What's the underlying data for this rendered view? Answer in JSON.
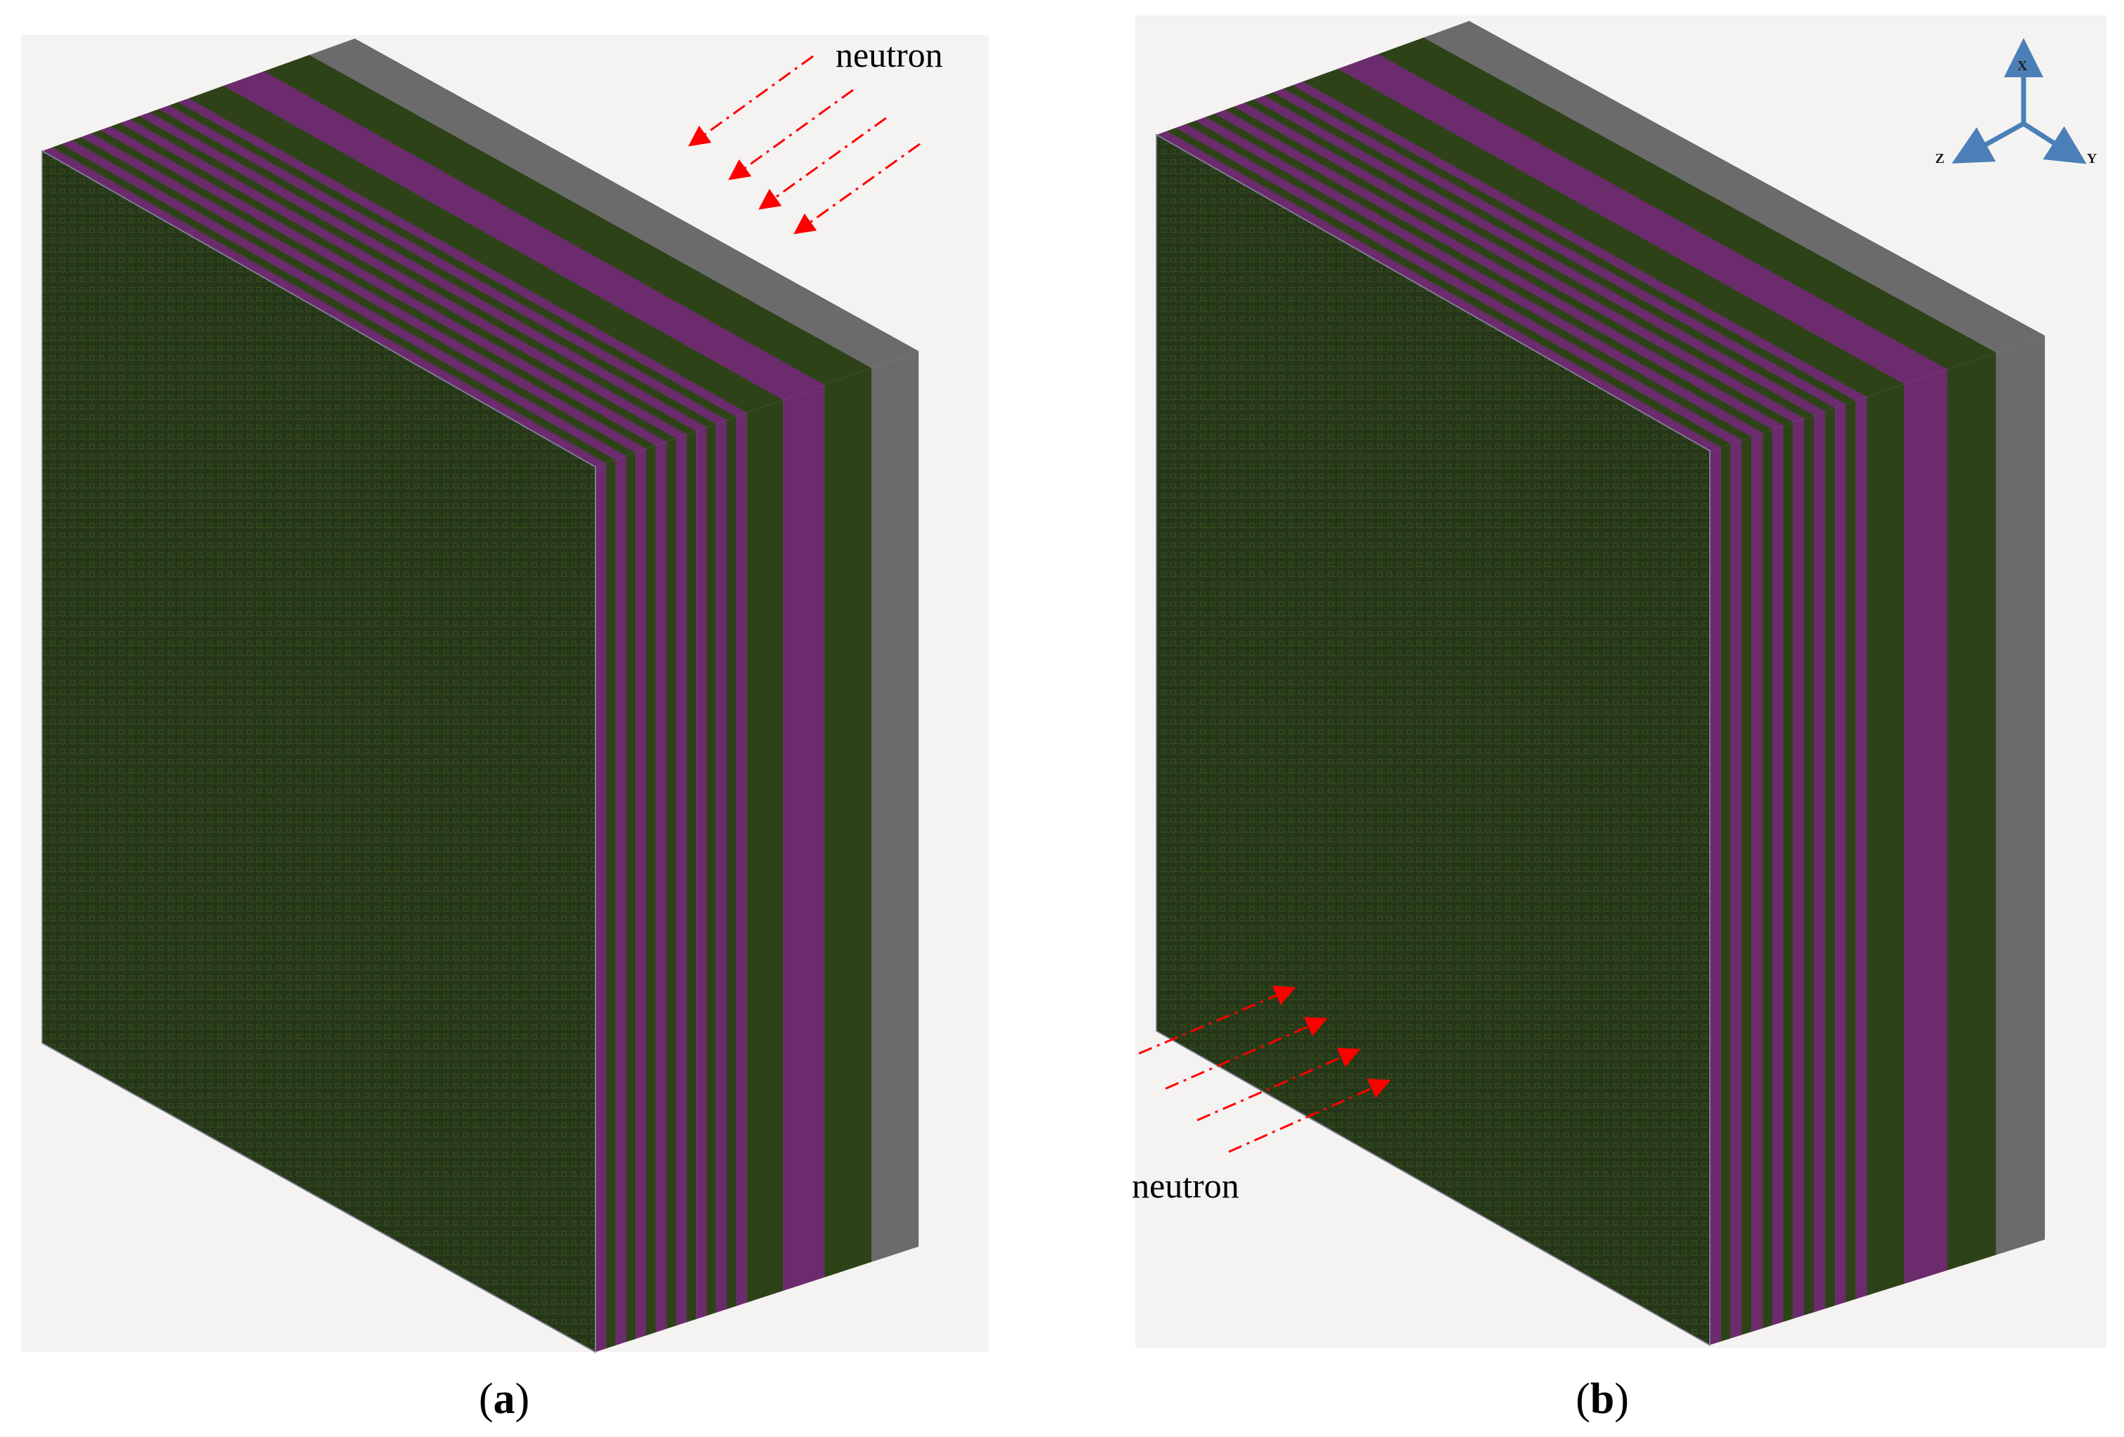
{
  "panels": [
    {
      "id": "a",
      "caption_letter": "a",
      "neutron_label": "neutron"
    },
    {
      "id": "b",
      "caption_letter": "b",
      "neutron_label": "neutron"
    }
  ],
  "axes_triad": {
    "x": "X",
    "y": "Y",
    "z": "Z"
  },
  "colors": {
    "background": "#f5f3f1",
    "dark_green": "#2e4218",
    "lattice_green": "#28391a",
    "purple": "#6b2b6d",
    "gray": "#6b6b6b",
    "arrow_red": "#ff0000",
    "triad_blue": "#4a7fb8"
  }
}
